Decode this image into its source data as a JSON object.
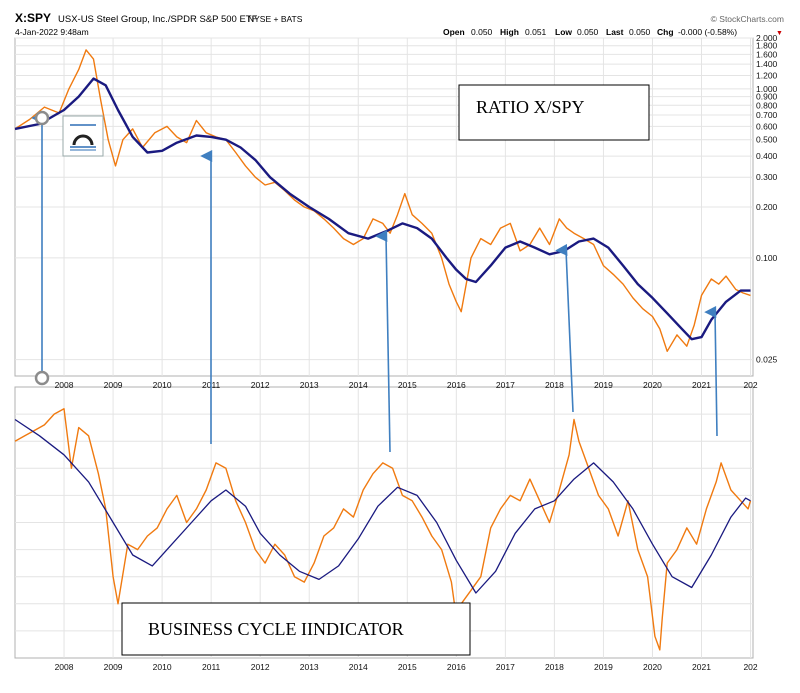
{
  "header": {
    "symbol": "X:SPY",
    "description": "USX-US Steel Group, Inc./SPDR S&P 500 ETF",
    "exchange": "NYSE + BATS",
    "date": "4-Jan-2022 9:48am",
    "brand": "© StockCharts.com",
    "quote": {
      "open_label": "Open",
      "open": "0.050",
      "high_label": "High",
      "high": "0.051",
      "low_label": "Low",
      "low": "0.050",
      "last_label": "Last",
      "last": "0.050",
      "chg_label": "Chg",
      "chg": "-0.000 (-0.58%)"
    },
    "down_marker": "▼"
  },
  "annotations": {
    "ratio_box": "RATIO X/SPY",
    "cycle_box": "BUSINESS CYCLE IINDICATOR"
  },
  "colors": {
    "price": "#F07A10",
    "ma": "#1A1A80",
    "arrow": "#3F7FC0",
    "grid": "#E4E4E4",
    "down": "#CC0000"
  },
  "chart_data": [
    {
      "type": "line",
      "title": "X:SPY",
      "scale": "log",
      "ylim": [
        0.02,
        2.0
      ],
      "xlim": [
        2007.0,
        2022.05
      ],
      "ytick_labels": [
        "2.000",
        "1.800",
        "1.600",
        "1.400",
        "1.200",
        "1.000",
        "0.900",
        "0.800",
        "0.700",
        "0.600",
        "0.500",
        "0.400",
        "0.300",
        "0.200",
        "0.100",
        "0.025"
      ],
      "xtick_labels": [
        "2008",
        "2009",
        "2010",
        "2011",
        "2012",
        "2013",
        "2014",
        "2015",
        "2016",
        "2017",
        "2018",
        "2019",
        "2020",
        "2021",
        "202"
      ],
      "series": [
        {
          "role": "price",
          "x": [
            2007.0,
            2007.3,
            2007.6,
            2007.9,
            2008.1,
            2008.3,
            2008.45,
            2008.6,
            2008.75,
            2008.9,
            2009.05,
            2009.2,
            2009.4,
            2009.6,
            2009.85,
            2010.1,
            2010.3,
            2010.5,
            2010.7,
            2010.9,
            2011.1,
            2011.3,
            2011.5,
            2011.7,
            2011.9,
            2012.1,
            2012.3,
            2012.5,
            2012.7,
            2012.9,
            2013.1,
            2013.3,
            2013.5,
            2013.7,
            2013.9,
            2014.1,
            2014.3,
            2014.5,
            2014.65,
            2014.8,
            2014.95,
            2015.1,
            2015.3,
            2015.5,
            2015.7,
            2015.85,
            2016.0,
            2016.1,
            2016.3,
            2016.5,
            2016.7,
            2016.9,
            2017.1,
            2017.3,
            2017.5,
            2017.7,
            2017.9,
            2018.1,
            2018.25,
            2018.4,
            2018.6,
            2018.8,
            2019.0,
            2019.2,
            2019.4,
            2019.6,
            2019.8,
            2020.0,
            2020.15,
            2020.3,
            2020.5,
            2020.7,
            2020.85,
            2021.0,
            2021.2,
            2021.35,
            2021.5,
            2021.7,
            2021.85,
            2022.0
          ],
          "y": [
            0.58,
            0.66,
            0.78,
            0.72,
            1.0,
            1.3,
            1.7,
            1.5,
            0.85,
            0.5,
            0.35,
            0.5,
            0.58,
            0.45,
            0.55,
            0.6,
            0.52,
            0.48,
            0.65,
            0.55,
            0.52,
            0.5,
            0.42,
            0.35,
            0.3,
            0.27,
            0.28,
            0.25,
            0.22,
            0.2,
            0.19,
            0.17,
            0.15,
            0.13,
            0.12,
            0.13,
            0.17,
            0.16,
            0.14,
            0.18,
            0.24,
            0.18,
            0.16,
            0.14,
            0.1,
            0.07,
            0.055,
            0.048,
            0.1,
            0.13,
            0.12,
            0.15,
            0.16,
            0.11,
            0.12,
            0.15,
            0.12,
            0.17,
            0.15,
            0.14,
            0.13,
            0.12,
            0.09,
            0.08,
            0.07,
            0.058,
            0.05,
            0.045,
            0.038,
            0.028,
            0.035,
            0.03,
            0.04,
            0.06,
            0.075,
            0.07,
            0.078,
            0.065,
            0.062,
            0.06
          ]
        },
        {
          "role": "moving-average",
          "x": [
            2007.0,
            2007.5,
            2008.0,
            2008.3,
            2008.6,
            2008.85,
            2009.1,
            2009.4,
            2009.7,
            2010.0,
            2010.3,
            2010.7,
            2011.0,
            2011.3,
            2011.6,
            2011.9,
            2012.2,
            2012.6,
            2013.0,
            2013.4,
            2013.8,
            2014.2,
            2014.6,
            2014.9,
            2015.2,
            2015.5,
            2015.8,
            2016.0,
            2016.2,
            2016.4,
            2016.7,
            2017.0,
            2017.3,
            2017.6,
            2017.9,
            2018.2,
            2018.5,
            2018.8,
            2019.1,
            2019.4,
            2019.7,
            2020.0,
            2020.3,
            2020.6,
            2020.8,
            2021.0,
            2021.2,
            2021.5,
            2021.8,
            2022.0
          ],
          "y": [
            0.58,
            0.62,
            0.75,
            0.9,
            1.15,
            1.05,
            0.75,
            0.52,
            0.42,
            0.43,
            0.48,
            0.53,
            0.52,
            0.5,
            0.45,
            0.38,
            0.3,
            0.24,
            0.2,
            0.17,
            0.14,
            0.13,
            0.145,
            0.16,
            0.15,
            0.13,
            0.1,
            0.085,
            0.075,
            0.072,
            0.09,
            0.115,
            0.125,
            0.115,
            0.105,
            0.11,
            0.125,
            0.13,
            0.115,
            0.09,
            0.07,
            0.058,
            0.047,
            0.038,
            0.033,
            0.034,
            0.043,
            0.055,
            0.064,
            0.064
          ]
        }
      ]
    },
    {
      "type": "line",
      "title": "",
      "ylim": [
        0,
        100
      ],
      "xlim": [
        2007.0,
        2022.05
      ],
      "xtick_labels": [
        "2008",
        "2009",
        "2010",
        "2011",
        "2012",
        "2013",
        "2014",
        "2015",
        "2016",
        "2017",
        "2018",
        "2019",
        "2020",
        "2021",
        "202"
      ],
      "series": [
        {
          "role": "cycle-oscillator",
          "x": [
            2007.0,
            2007.2,
            2007.4,
            2007.6,
            2007.8,
            2008.0,
            2008.15,
            2008.3,
            2008.5,
            2008.7,
            2008.85,
            2009.0,
            2009.1,
            2009.3,
            2009.5,
            2009.7,
            2009.9,
            2010.1,
            2010.3,
            2010.5,
            2010.7,
            2010.9,
            2011.1,
            2011.3,
            2011.5,
            2011.7,
            2011.9,
            2012.1,
            2012.3,
            2012.5,
            2012.7,
            2012.9,
            2013.1,
            2013.3,
            2013.5,
            2013.7,
            2013.9,
            2014.1,
            2014.3,
            2014.5,
            2014.7,
            2014.9,
            2015.1,
            2015.3,
            2015.5,
            2015.7,
            2015.9,
            2016.0,
            2016.1,
            2016.3,
            2016.5,
            2016.7,
            2016.9,
            2017.1,
            2017.3,
            2017.5,
            2017.7,
            2017.9,
            2018.1,
            2018.3,
            2018.4,
            2018.5,
            2018.7,
            2018.9,
            2019.1,
            2019.3,
            2019.5,
            2019.7,
            2019.9,
            2020.05,
            2020.15,
            2020.2,
            2020.3,
            2020.5,
            2020.7,
            2020.9,
            2021.1,
            2021.3,
            2021.4,
            2021.6,
            2021.8,
            2021.95,
            2022.0
          ],
          "y": [
            80,
            82,
            84,
            86,
            90,
            92,
            70,
            85,
            82,
            68,
            55,
            30,
            20,
            42,
            40,
            45,
            48,
            55,
            60,
            50,
            55,
            62,
            72,
            70,
            58,
            50,
            40,
            35,
            42,
            38,
            30,
            28,
            35,
            45,
            48,
            55,
            52,
            62,
            68,
            72,
            70,
            60,
            58,
            52,
            45,
            40,
            28,
            15,
            20,
            25,
            30,
            48,
            55,
            60,
            58,
            66,
            58,
            50,
            62,
            75,
            88,
            80,
            70,
            60,
            55,
            45,
            58,
            40,
            30,
            8,
            3,
            15,
            35,
            40,
            48,
            42,
            55,
            65,
            72,
            62,
            58,
            55,
            58
          ]
        },
        {
          "role": "moving-average",
          "x": [
            2007.0,
            2007.5,
            2008.0,
            2008.5,
            2009.0,
            2009.4,
            2009.8,
            2010.2,
            2010.6,
            2011.0,
            2011.3,
            2011.7,
            2012.0,
            2012.4,
            2012.8,
            2013.2,
            2013.6,
            2014.0,
            2014.4,
            2014.8,
            2015.2,
            2015.6,
            2016.0,
            2016.4,
            2016.8,
            2017.2,
            2017.6,
            2018.0,
            2018.4,
            2018.8,
            2019.2,
            2019.6,
            2020.0,
            2020.4,
            2020.8,
            2021.2,
            2021.6,
            2021.9,
            2022.0
          ],
          "y": [
            88,
            82,
            75,
            65,
            50,
            38,
            34,
            42,
            50,
            58,
            62,
            56,
            46,
            38,
            32,
            29,
            34,
            44,
            56,
            63,
            60,
            50,
            36,
            24,
            32,
            46,
            55,
            58,
            66,
            72,
            65,
            55,
            42,
            30,
            26,
            38,
            52,
            59,
            58
          ]
        }
      ]
    }
  ]
}
